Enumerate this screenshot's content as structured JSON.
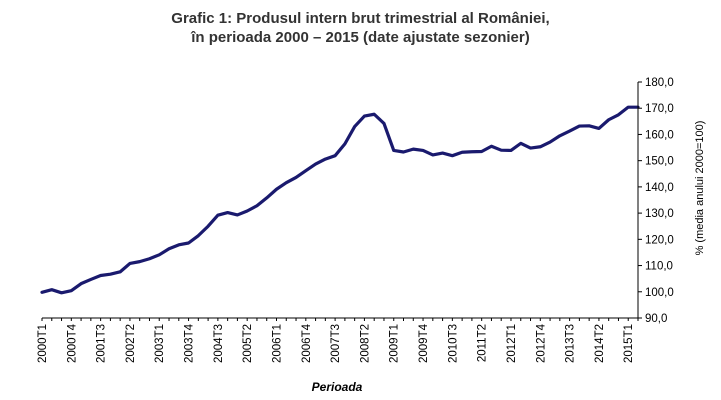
{
  "chart_data": {
    "type": "line",
    "title": "Grafic 1: Produsul intern brut trimestrial al României,",
    "subtitle": "în perioada 2000 – 2015 (date ajustate sezonier)",
    "xlabel": "Perioada",
    "ylabel": "% (media anului 2000=100)",
    "ylim": [
      90,
      180
    ],
    "yticks": [
      "90,0",
      "100,0",
      "110,0",
      "120,0",
      "130,0",
      "140,0",
      "150,0",
      "160,0",
      "170,0",
      "180,0"
    ],
    "y_axis_side": "right",
    "grid": false,
    "legend": "none",
    "line_color": "#1a1a6e",
    "x_tick_labels": [
      "2000T1",
      "2000T4",
      "2001T3",
      "2002T2",
      "2003T1",
      "2003T4",
      "2004T3",
      "2005T2",
      "2006T1",
      "2006T4",
      "2007T3",
      "2008T2",
      "2009T1",
      "2009T4",
      "2010T3",
      "2011T2",
      "2012T1",
      "2012T4",
      "2013T3",
      "2014T2",
      "2015T1"
    ],
    "categories": [
      "2000T1",
      "2000T2",
      "2000T3",
      "2000T4",
      "2001T1",
      "2001T2",
      "2001T3",
      "2001T4",
      "2002T1",
      "2002T2",
      "2002T3",
      "2002T4",
      "2003T1",
      "2003T2",
      "2003T3",
      "2003T4",
      "2004T1",
      "2004T2",
      "2004T3",
      "2004T4",
      "2005T1",
      "2005T2",
      "2005T3",
      "2005T4",
      "2006T1",
      "2006T2",
      "2006T3",
      "2006T4",
      "2007T1",
      "2007T2",
      "2007T3",
      "2007T4",
      "2008T1",
      "2008T2",
      "2008T3",
      "2008T4",
      "2009T1",
      "2009T2",
      "2009T3",
      "2009T4",
      "2010T1",
      "2010T2",
      "2010T3",
      "2010T4",
      "2011T1",
      "2011T2",
      "2011T3",
      "2011T4",
      "2012T1",
      "2012T2",
      "2012T3",
      "2012T4",
      "2013T1",
      "2013T2",
      "2013T3",
      "2013T4",
      "2014T1",
      "2014T2",
      "2014T3",
      "2014T4",
      "2015T1",
      "2015T2"
    ],
    "values": [
      99.8,
      100.8,
      99.6,
      100.4,
      103.1,
      104.7,
      106.2,
      106.7,
      107.6,
      110.8,
      111.5,
      112.6,
      114.1,
      116.4,
      117.9,
      118.6,
      121.4,
      125.0,
      129.2,
      130.2,
      129.3,
      130.8,
      132.8,
      135.8,
      139.1,
      141.6,
      143.6,
      146.2,
      148.7,
      150.6,
      151.9,
      156.4,
      163.0,
      167.0,
      167.7,
      164.2,
      153.9,
      153.3,
      154.4,
      153.9,
      152.2,
      152.9,
      151.9,
      153.2,
      153.4,
      153.5,
      155.5,
      154.0,
      153.9,
      156.6,
      154.8,
      155.3,
      157.1,
      159.5,
      161.3,
      163.2,
      163.3,
      162.3,
      165.6,
      167.5,
      170.4,
      170.4
    ]
  }
}
